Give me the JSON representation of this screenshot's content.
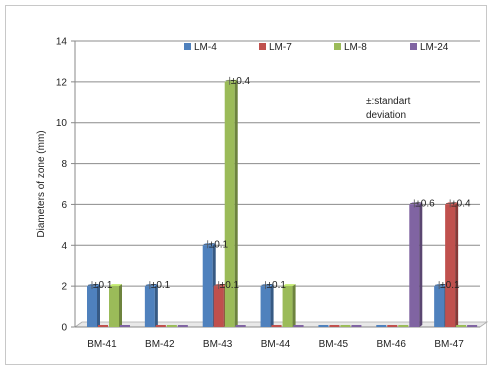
{
  "chart_data": {
    "type": "bar",
    "title": "",
    "xlabel": "",
    "ylabel": "Diameters of zone (mm)",
    "ylim": [
      0,
      14
    ],
    "yticks": [
      0,
      2,
      4,
      6,
      8,
      10,
      12,
      14
    ],
    "grid": true,
    "legend_position": "top",
    "categories": [
      "BM-41",
      "BM-42",
      "BM-43",
      "BM-44",
      "BM-45",
      "BM-46",
      "BM-47"
    ],
    "series": [
      {
        "name": "LM-4",
        "color": "#4f81bd",
        "values": [
          2,
          2,
          4,
          2,
          0,
          0,
          2
        ],
        "labels": [
          "±0.1",
          "±0.1",
          "±0.1",
          "±0.1",
          "",
          "",
          "±0.1"
        ]
      },
      {
        "name": "LM-7",
        "color": "#c0504d",
        "values": [
          0,
          0,
          2,
          0,
          0,
          0,
          6
        ],
        "labels": [
          "",
          "",
          "±0.1",
          "",
          "",
          "",
          "±0.4"
        ]
      },
      {
        "name": "LM-8",
        "color": "#9bbb59",
        "values": [
          2,
          0,
          12,
          2,
          0,
          0,
          0
        ],
        "labels": [
          "",
          "",
          "±0.4",
          "",
          "",
          "",
          ""
        ]
      },
      {
        "name": "LM-24",
        "color": "#8064a2",
        "values": [
          0,
          0,
          0,
          0,
          0,
          6,
          0
        ],
        "labels": [
          "",
          "",
          "",
          "",
          "",
          "±0.6",
          ""
        ]
      }
    ],
    "annotation": "±:standart deviation",
    "annotation_lines": [
      "±:standart",
      "deviation"
    ]
  }
}
